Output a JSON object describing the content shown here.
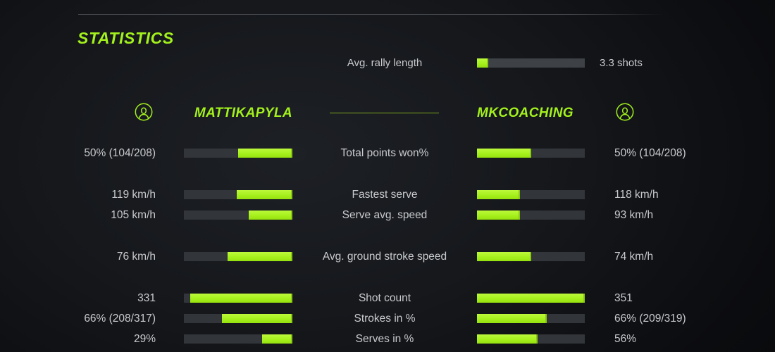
{
  "title": "STATISTICS",
  "rally": {
    "label": "Avg. rally length",
    "value": "3.3 shots",
    "fill_pct": 10.5
  },
  "players": {
    "left": {
      "name": "MATTIKAPYLA"
    },
    "right": {
      "name": "MKCOACHING"
    }
  },
  "rows": [
    {
      "label": "Total points won%",
      "left": {
        "value": "50% (104/208)",
        "fill_pct": 50
      },
      "right": {
        "value": "50% (104/208)",
        "fill_pct": 50
      }
    },
    {
      "label": "Fastest serve",
      "left": {
        "value": "119 km/h",
        "fill_pct": 51
      },
      "right": {
        "value": "118 km/h",
        "fill_pct": 40
      }
    },
    {
      "label": "Serve avg. speed",
      "left": {
        "value": "105 km/h",
        "fill_pct": 40
      },
      "right": {
        "value": "93 km/h",
        "fill_pct": 40
      }
    },
    {
      "label": "Avg. ground stroke speed",
      "left": {
        "value": "76 km/h",
        "fill_pct": 60
      },
      "right": {
        "value": "74 km/h",
        "fill_pct": 50
      }
    },
    {
      "label": "Shot count",
      "left": {
        "value": "331",
        "fill_pct": 94
      },
      "right": {
        "value": "351",
        "fill_pct": 100
      }
    },
    {
      "label": "Strokes in %",
      "left": {
        "value": "66% (208/317)",
        "fill_pct": 65
      },
      "right": {
        "value": "66% (209/319)",
        "fill_pct": 65
      }
    },
    {
      "label": "Serves in %",
      "left": {
        "value": "29%",
        "fill_pct": 28
      },
      "right": {
        "value": "56%",
        "fill_pct": 56
      }
    }
  ],
  "colors": {
    "accent": "#a3f11d",
    "bar_fill": "#a6f01d",
    "bar_fill_hi": "#bcf93b",
    "bar_fill_lo": "#94e00e",
    "bar_fill_edge": "#8cc913",
    "track": "#323539",
    "rally_track": "#3e4247",
    "text": "#c8cacd",
    "divider": "#45484e",
    "center_line": "#7fa81e"
  }
}
